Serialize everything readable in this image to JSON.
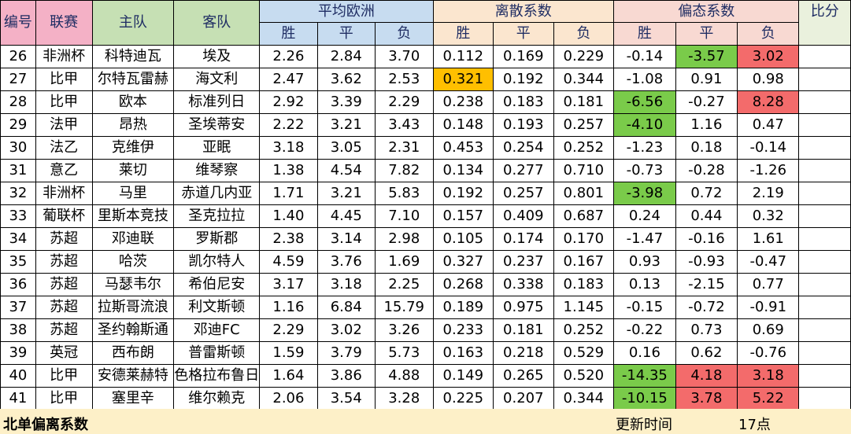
{
  "header": {
    "id": "编号",
    "league": "联赛",
    "home": "主队",
    "away": "客队",
    "avg_odds": "平均欧洲",
    "dispersion": "离散系数",
    "skewness": "偏态系数",
    "score": "比分",
    "win": "胜",
    "draw": "平",
    "lose": "负"
  },
  "rows": [
    {
      "id": "26",
      "league": "非洲杯",
      "home": "科特迪瓦",
      "away": "埃及",
      "odds": [
        "2.26",
        "2.84",
        "3.70"
      ],
      "disp": [
        "0.112",
        "0.169",
        "0.229"
      ],
      "skew": [
        "-0.14",
        "-3.57",
        "3.02"
      ],
      "skew_hl": [
        "",
        "green",
        "red"
      ],
      "disp_hl": [
        "",
        "",
        ""
      ]
    },
    {
      "id": "27",
      "league": "比甲",
      "home": "尔特瓦雷赫",
      "away": "海文利",
      "odds": [
        "2.47",
        "3.62",
        "2.53"
      ],
      "disp": [
        "0.321",
        "0.192",
        "0.344"
      ],
      "skew": [
        "-1.08",
        "0.91",
        "0.98"
      ],
      "skew_hl": [
        "",
        "",
        ""
      ],
      "disp_hl": [
        "orange",
        "",
        ""
      ]
    },
    {
      "id": "28",
      "league": "比甲",
      "home": "欧本",
      "away": "标准列日",
      "odds": [
        "2.92",
        "3.39",
        "2.29"
      ],
      "disp": [
        "0.238",
        "0.183",
        "0.181"
      ],
      "skew": [
        "-6.56",
        "-0.27",
        "8.28"
      ],
      "skew_hl": [
        "green",
        "",
        "red"
      ],
      "disp_hl": [
        "",
        "",
        ""
      ]
    },
    {
      "id": "29",
      "league": "法甲",
      "home": "昂热",
      "away": "圣埃蒂安",
      "odds": [
        "2.22",
        "3.21",
        "3.43"
      ],
      "disp": [
        "0.148",
        "0.193",
        "0.257"
      ],
      "skew": [
        "-4.10",
        "1.16",
        "0.47"
      ],
      "skew_hl": [
        "green",
        "",
        ""
      ],
      "disp_hl": [
        "",
        "",
        ""
      ]
    },
    {
      "id": "30",
      "league": "法乙",
      "home": "克维伊",
      "away": "亚眠",
      "odds": [
        "3.18",
        "3.05",
        "2.31"
      ],
      "disp": [
        "0.453",
        "0.254",
        "0.252"
      ],
      "skew": [
        "-1.23",
        "0.18",
        "-0.14"
      ],
      "skew_hl": [
        "",
        "",
        ""
      ],
      "disp_hl": [
        "",
        "",
        ""
      ]
    },
    {
      "id": "31",
      "league": "意乙",
      "home": "莱切",
      "away": "维琴察",
      "odds": [
        "1.38",
        "4.54",
        "7.82"
      ],
      "disp": [
        "0.134",
        "0.277",
        "0.710"
      ],
      "skew": [
        "-0.73",
        "-0.28",
        "-1.26"
      ],
      "skew_hl": [
        "",
        "",
        ""
      ],
      "disp_hl": [
        "",
        "",
        ""
      ]
    },
    {
      "id": "32",
      "league": "非洲杯",
      "home": "马里",
      "away": "赤道几内亚",
      "odds": [
        "1.71",
        "3.21",
        "5.83"
      ],
      "disp": [
        "0.192",
        "0.257",
        "0.801"
      ],
      "skew": [
        "-3.98",
        "0.72",
        "2.19"
      ],
      "skew_hl": [
        "green",
        "",
        ""
      ],
      "disp_hl": [
        "",
        "",
        ""
      ]
    },
    {
      "id": "33",
      "league": "葡联杯",
      "home": "里斯本竞技",
      "away": "圣克拉拉",
      "odds": [
        "1.40",
        "4.45",
        "7.10"
      ],
      "disp": [
        "0.157",
        "0.409",
        "0.687"
      ],
      "skew": [
        "0.24",
        "0.44",
        "0.32"
      ],
      "skew_hl": [
        "",
        "",
        ""
      ],
      "disp_hl": [
        "",
        "",
        ""
      ]
    },
    {
      "id": "34",
      "league": "苏超",
      "home": "邓迪联",
      "away": "罗斯郡",
      "odds": [
        "2.38",
        "3.14",
        "2.98"
      ],
      "disp": [
        "0.105",
        "0.174",
        "0.170"
      ],
      "skew": [
        "-1.47",
        "-0.16",
        "1.61"
      ],
      "skew_hl": [
        "",
        "",
        ""
      ],
      "disp_hl": [
        "",
        "",
        ""
      ]
    },
    {
      "id": "35",
      "league": "苏超",
      "home": "哈茨",
      "away": "凯尔特人",
      "odds": [
        "4.59",
        "3.76",
        "1.69"
      ],
      "disp": [
        "0.327",
        "0.237",
        "0.167"
      ],
      "skew": [
        "0.93",
        "-0.93",
        "-0.47"
      ],
      "skew_hl": [
        "",
        "",
        ""
      ],
      "disp_hl": [
        "",
        "",
        ""
      ]
    },
    {
      "id": "36",
      "league": "苏超",
      "home": "马瑟韦尔",
      "away": "希伯尼安",
      "odds": [
        "3.17",
        "3.18",
        "2.25"
      ],
      "disp": [
        "0.268",
        "0.338",
        "0.183"
      ],
      "skew": [
        "0.13",
        "-2.15",
        "0.77"
      ],
      "skew_hl": [
        "",
        "",
        ""
      ],
      "disp_hl": [
        "",
        "",
        ""
      ]
    },
    {
      "id": "37",
      "league": "苏超",
      "home": "拉斯哥流浪",
      "away": "利文斯顿",
      "odds": [
        "1.16",
        "6.84",
        "15.79"
      ],
      "disp": [
        "0.189",
        "0.975",
        "1.145"
      ],
      "skew": [
        "-0.15",
        "-0.72",
        "-0.91"
      ],
      "skew_hl": [
        "",
        "",
        ""
      ],
      "disp_hl": [
        "",
        "",
        ""
      ]
    },
    {
      "id": "38",
      "league": "苏超",
      "home": "圣约翰斯通",
      "away": "邓迪FC",
      "odds": [
        "2.29",
        "3.02",
        "3.26"
      ],
      "disp": [
        "0.233",
        "0.181",
        "0.252"
      ],
      "skew": [
        "-0.22",
        "0.73",
        "0.69"
      ],
      "skew_hl": [
        "",
        "",
        ""
      ],
      "disp_hl": [
        "",
        "",
        ""
      ]
    },
    {
      "id": "39",
      "league": "英冠",
      "home": "西布朗",
      "away": "普雷斯顿",
      "odds": [
        "1.59",
        "3.79",
        "5.73"
      ],
      "disp": [
        "0.163",
        "0.218",
        "0.529"
      ],
      "skew": [
        "0.16",
        "0.62",
        "-0.76"
      ],
      "skew_hl": [
        "",
        "",
        ""
      ],
      "disp_hl": [
        "",
        "",
        ""
      ]
    },
    {
      "id": "40",
      "league": "比甲",
      "home": "安德莱赫特",
      "away": "色格拉布鲁日",
      "odds": [
        "1.64",
        "3.86",
        "4.88"
      ],
      "disp": [
        "0.149",
        "0.265",
        "0.520"
      ],
      "skew": [
        "-14.35",
        "4.18",
        "3.18"
      ],
      "skew_hl": [
        "green",
        "red",
        "red"
      ],
      "disp_hl": [
        "",
        "",
        ""
      ]
    },
    {
      "id": "41",
      "league": "比甲",
      "home": "塞里辛",
      "away": "维尔赖克",
      "odds": [
        "2.06",
        "3.54",
        "3.28"
      ],
      "disp": [
        "0.225",
        "0.207",
        "0.344"
      ],
      "skew": [
        "-10.15",
        "3.78",
        "5.22"
      ],
      "skew_hl": [
        "green",
        "red",
        "red"
      ],
      "disp_hl": [
        "",
        "",
        ""
      ]
    }
  ],
  "footer": {
    "title": "北单偏离系数",
    "update_label": "更新时间",
    "update_time": "17点"
  },
  "colors": {
    "green": "#7acb4a",
    "red": "#f36b6b",
    "orange": "#ffbf00"
  }
}
